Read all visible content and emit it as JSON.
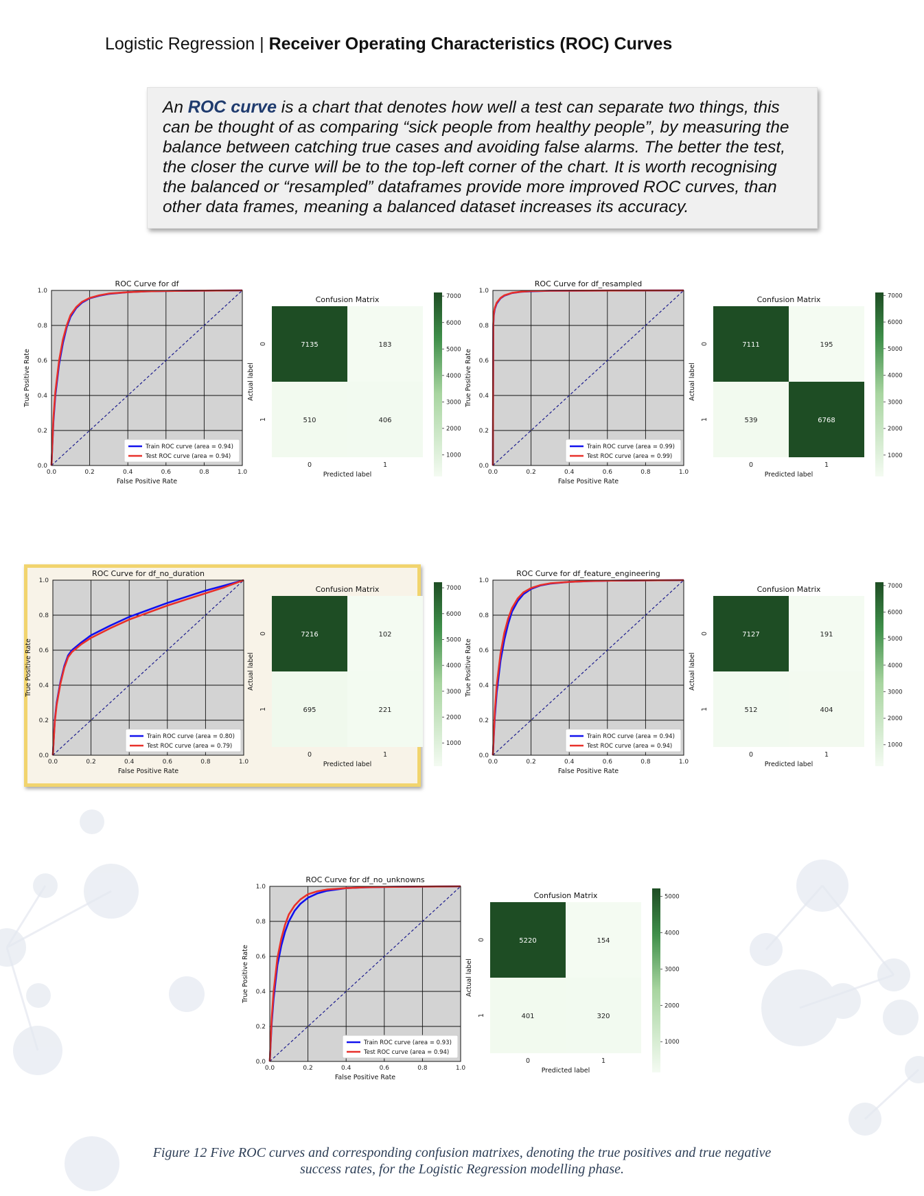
{
  "header": {
    "prefix": "Logistic Regression | ",
    "title": "Receiver Operating Characteristics (ROC) Curves"
  },
  "callout": {
    "lead": "An ",
    "emphasis": "ROC curve",
    "body": " is a chart that denotes how well a test can separate two things, this can be thought of as comparing “sick people from healthy people”, by measuring the balance between catching true cases and avoiding false alarms. The better the test, the closer the curve will be to the top-left corner of the chart. It is worth recognising the balanced or “resampled” dataframes provide more improved ROC curves, than other data frames, meaning a balanced dataset increases its accuracy."
  },
  "caption": "Figure 12 Five ROC curves and corresponding confusion matrixes, denoting the true positives and true negative success rates, for the Logistic Regression modelling phase.",
  "colors": {
    "train": "#1111ee",
    "test": "#e8302a",
    "diagonal": "#1a1a8c",
    "roc_bg": "#d3d3d3",
    "cm_dark": "#1e4d24",
    "cm_light": "#f4fbf2",
    "highlight_border": "#f1d46e"
  },
  "chart_data": [
    {
      "type": "line",
      "title": "ROC Curve for df",
      "xlabel": "False Positive Rate",
      "ylabel": "True Positive Rate",
      "xlim": [
        0,
        1
      ],
      "ylim": [
        0,
        1
      ],
      "ticks": [
        "0.0",
        "0.2",
        "0.4",
        "0.6",
        "0.8",
        "1.0"
      ],
      "series": [
        {
          "name": "Train ROC curve (area = 0.94)",
          "x": [
            0,
            0.01,
            0.02,
            0.04,
            0.06,
            0.08,
            0.1,
            0.13,
            0.16,
            0.2,
            0.25,
            0.3,
            0.4,
            0.5,
            0.6,
            0.8,
            1.0
          ],
          "y": [
            0,
            0.25,
            0.4,
            0.58,
            0.7,
            0.79,
            0.85,
            0.9,
            0.93,
            0.955,
            0.97,
            0.98,
            0.99,
            0.995,
            0.997,
            0.999,
            1.0
          ]
        },
        {
          "name": "Test ROC curve (area = 0.94)",
          "x": [
            0,
            0.01,
            0.02,
            0.04,
            0.06,
            0.08,
            0.1,
            0.13,
            0.16,
            0.2,
            0.25,
            0.3,
            0.4,
            0.5,
            0.6,
            0.8,
            1.0
          ],
          "y": [
            0,
            0.27,
            0.42,
            0.6,
            0.72,
            0.8,
            0.86,
            0.905,
            0.935,
            0.957,
            0.972,
            0.982,
            0.99,
            0.995,
            0.997,
            0.999,
            1.0
          ]
        }
      ]
    },
    {
      "type": "heatmap",
      "title": "Confusion Matrix",
      "xlabel": "Predicted label",
      "ylabel": "Actual label",
      "x_ticks": [
        "0",
        "1"
      ],
      "y_ticks": [
        "0",
        "1"
      ],
      "values": [
        [
          7135,
          183
        ],
        [
          510,
          406
        ]
      ],
      "colorbar_ticks": [
        1000,
        2000,
        3000,
        4000,
        5000,
        6000,
        7000
      ]
    },
    {
      "type": "line",
      "title": "ROC Curve for df_resampled",
      "xlabel": "False Positive Rate",
      "ylabel": "True Positive Rate",
      "xlim": [
        0,
        1
      ],
      "ylim": [
        0,
        1
      ],
      "ticks": [
        "0.0",
        "0.2",
        "0.4",
        "0.6",
        "0.8",
        "1.0"
      ],
      "series": [
        {
          "name": "Train ROC curve (area = 0.99)",
          "x": [
            0,
            0.002,
            0.005,
            0.01,
            0.02,
            0.04,
            0.06,
            0.1,
            0.15,
            0.2,
            0.3,
            0.5,
            1.0
          ],
          "y": [
            0,
            0.8,
            0.86,
            0.895,
            0.925,
            0.955,
            0.97,
            0.985,
            0.992,
            0.995,
            0.998,
            0.999,
            1.0
          ]
        },
        {
          "name": "Test ROC curve (area = 0.99)",
          "x": [
            0,
            0.002,
            0.005,
            0.01,
            0.02,
            0.04,
            0.06,
            0.1,
            0.15,
            0.2,
            0.3,
            0.5,
            1.0
          ],
          "y": [
            0,
            0.81,
            0.87,
            0.9,
            0.93,
            0.957,
            0.972,
            0.986,
            0.993,
            0.996,
            0.998,
            0.999,
            1.0
          ]
        }
      ]
    },
    {
      "type": "heatmap",
      "title": "Confusion Matrix",
      "xlabel": "Predicted label",
      "ylabel": "Actual label",
      "x_ticks": [
        "0",
        "1"
      ],
      "y_ticks": [
        "0",
        "1"
      ],
      "values": [
        [
          7111,
          195
        ],
        [
          539,
          6768
        ]
      ],
      "colorbar_ticks": [
        1000,
        2000,
        3000,
        4000,
        5000,
        6000,
        7000
      ]
    },
    {
      "type": "line",
      "title": "ROC Curve for df_no_duration",
      "xlabel": "False Positive Rate",
      "ylabel": "True Positive Rate",
      "xlim": [
        0,
        1
      ],
      "ylim": [
        0,
        1
      ],
      "ticks": [
        "0.0",
        "0.2",
        "0.4",
        "0.6",
        "0.8",
        "1.0"
      ],
      "highlighted": true,
      "series": [
        {
          "name": "Train ROC curve (area = 0.80)",
          "x": [
            0,
            0.01,
            0.02,
            0.04,
            0.06,
            0.08,
            0.1,
            0.15,
            0.2,
            0.3,
            0.4,
            0.5,
            0.6,
            0.7,
            0.8,
            0.9,
            1.0
          ],
          "y": [
            0,
            0.2,
            0.3,
            0.42,
            0.51,
            0.57,
            0.6,
            0.645,
            0.685,
            0.74,
            0.79,
            0.83,
            0.87,
            0.905,
            0.94,
            0.97,
            1.0
          ]
        },
        {
          "name": "Test ROC curve (area = 0.79)",
          "x": [
            0,
            0.01,
            0.02,
            0.04,
            0.06,
            0.08,
            0.1,
            0.15,
            0.2,
            0.3,
            0.4,
            0.5,
            0.6,
            0.7,
            0.8,
            0.9,
            1.0
          ],
          "y": [
            0,
            0.19,
            0.29,
            0.41,
            0.5,
            0.56,
            0.59,
            0.635,
            0.67,
            0.725,
            0.775,
            0.815,
            0.855,
            0.89,
            0.925,
            0.96,
            1.0
          ]
        }
      ]
    },
    {
      "type": "heatmap",
      "title": "Confusion Matrix",
      "xlabel": "Predicted label",
      "ylabel": "Actual label",
      "x_ticks": [
        "0",
        "1"
      ],
      "y_ticks": [
        "0",
        "1"
      ],
      "values": [
        [
          7216,
          102
        ],
        [
          695,
          221
        ]
      ],
      "colorbar_ticks": [
        1000,
        2000,
        3000,
        4000,
        5000,
        6000,
        7000
      ]
    },
    {
      "type": "line",
      "title": "ROC Curve for df_feature_engineering",
      "xlabel": "False Positive Rate",
      "ylabel": "True Positive Rate",
      "xlim": [
        0,
        1
      ],
      "ylim": [
        0,
        1
      ],
      "ticks": [
        "0.0",
        "0.2",
        "0.4",
        "0.6",
        "0.8",
        "1.0"
      ],
      "series": [
        {
          "name": "Train ROC curve (area = 0.94)",
          "x": [
            0,
            0.01,
            0.02,
            0.04,
            0.06,
            0.08,
            0.1,
            0.13,
            0.16,
            0.2,
            0.25,
            0.3,
            0.4,
            0.5,
            0.6,
            0.8,
            1.0
          ],
          "y": [
            0,
            0.22,
            0.36,
            0.54,
            0.66,
            0.75,
            0.82,
            0.88,
            0.92,
            0.95,
            0.97,
            0.98,
            0.99,
            0.994,
            0.997,
            0.999,
            1.0
          ]
        },
        {
          "name": "Test ROC curve (area = 0.94)",
          "x": [
            0,
            0.01,
            0.02,
            0.04,
            0.06,
            0.08,
            0.1,
            0.13,
            0.16,
            0.2,
            0.25,
            0.3,
            0.4,
            0.5,
            0.6,
            0.8,
            1.0
          ],
          "y": [
            0,
            0.25,
            0.4,
            0.58,
            0.7,
            0.78,
            0.84,
            0.895,
            0.93,
            0.955,
            0.972,
            0.982,
            0.99,
            0.995,
            0.997,
            0.999,
            1.0
          ]
        }
      ]
    },
    {
      "type": "heatmap",
      "title": "Confusion Matrix",
      "xlabel": "Predicted label",
      "ylabel": "Actual label",
      "x_ticks": [
        "0",
        "1"
      ],
      "y_ticks": [
        "0",
        "1"
      ],
      "values": [
        [
          7127,
          191
        ],
        [
          512,
          404
        ]
      ],
      "colorbar_ticks": [
        1000,
        2000,
        3000,
        4000,
        5000,
        6000,
        7000
      ]
    },
    {
      "type": "line",
      "title": "ROC Curve for df_no_unknowns",
      "xlabel": "False Positive Rate",
      "ylabel": "True Positive Rate",
      "xlim": [
        0,
        1
      ],
      "ylim": [
        0,
        1
      ],
      "ticks": [
        "0.0",
        "0.2",
        "0.4",
        "0.6",
        "0.8",
        "1.0"
      ],
      "series": [
        {
          "name": "Train ROC curve (area = 0.93)",
          "x": [
            0,
            0.01,
            0.02,
            0.04,
            0.06,
            0.08,
            0.1,
            0.13,
            0.16,
            0.2,
            0.25,
            0.3,
            0.4,
            0.5,
            0.6,
            0.8,
            1.0
          ],
          "y": [
            0,
            0.22,
            0.36,
            0.55,
            0.66,
            0.74,
            0.8,
            0.86,
            0.9,
            0.935,
            0.96,
            0.975,
            0.99,
            0.994,
            0.997,
            0.999,
            1.0
          ]
        },
        {
          "name": "Test ROC curve (area = 0.94)",
          "x": [
            0,
            0.01,
            0.02,
            0.04,
            0.06,
            0.08,
            0.1,
            0.13,
            0.16,
            0.2,
            0.25,
            0.3,
            0.4,
            0.5,
            0.6,
            0.8,
            1.0
          ],
          "y": [
            0,
            0.25,
            0.4,
            0.59,
            0.7,
            0.78,
            0.84,
            0.89,
            0.925,
            0.955,
            0.972,
            0.982,
            0.99,
            0.995,
            0.997,
            0.999,
            1.0
          ]
        }
      ]
    },
    {
      "type": "heatmap",
      "title": "Confusion Matrix",
      "xlabel": "Predicted label",
      "ylabel": "Actual label",
      "x_ticks": [
        "0",
        "1"
      ],
      "y_ticks": [
        "0",
        "1"
      ],
      "values": [
        [
          5220,
          154
        ],
        [
          401,
          320
        ]
      ],
      "colorbar_ticks": [
        1000,
        2000,
        3000,
        4000,
        5000
      ]
    }
  ]
}
